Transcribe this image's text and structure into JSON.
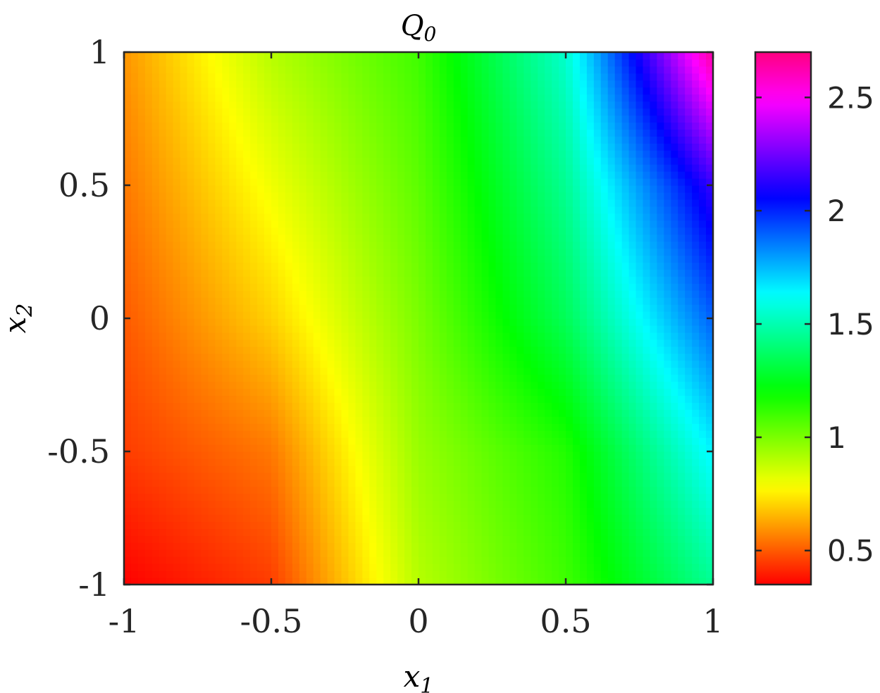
{
  "chart_data": {
    "type": "heatmap",
    "title": "Q",
    "title_subscript": "0",
    "xlabel": "x",
    "xlabel_subscript": "1",
    "ylabel": "x",
    "ylabel_subscript": "2",
    "xlim": [
      -1,
      1
    ],
    "ylim": [
      -1,
      1
    ],
    "xticks": [
      -1,
      -0.5,
      0,
      0.5,
      1
    ],
    "xtick_labels": [
      "-1",
      "-0.5",
      "0",
      "0.5",
      "1"
    ],
    "yticks": [
      -1,
      -0.5,
      0,
      0.5,
      1
    ],
    "ytick_labels": [
      "-1",
      "-0.5",
      "0",
      "0.5",
      "1"
    ],
    "colorbar": {
      "range": [
        0.35,
        2.7
      ],
      "ticks": [
        0.5,
        1,
        1.5,
        2,
        2.5
      ],
      "tick_labels": [
        "0.5",
        "1",
        "1.5",
        "2",
        "2.5"
      ],
      "colormap": [
        "#ff0000",
        "#ff8000",
        "#ffff00",
        "#80ff00",
        "#00ff00",
        "#00ff80",
        "#00ffff",
        "#0080ff",
        "#0000ff",
        "#8000ff",
        "#ff00ff",
        "#ff0080"
      ]
    },
    "x": [
      -1,
      -0.5,
      0,
      0.5,
      1
    ],
    "y": [
      -1,
      -0.5,
      0,
      0.5,
      1
    ],
    "z": [
      [
        0.35,
        0.45,
        0.9,
        1.1,
        1.45
      ],
      [
        0.45,
        0.55,
        0.95,
        1.15,
        1.65
      ],
      [
        0.5,
        0.7,
        1.0,
        1.35,
        1.9
      ],
      [
        0.55,
        0.8,
        1.05,
        1.45,
        2.15
      ],
      [
        0.6,
        0.9,
        1.1,
        1.55,
        2.65
      ]
    ],
    "grid": false,
    "legend": "colorbar-right"
  }
}
